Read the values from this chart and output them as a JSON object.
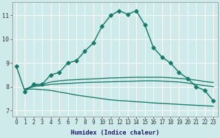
{
  "xlabel": "Humidex (Indice chaleur)",
  "bg_color": "#ceeaea",
  "grid_color": "#ffffff",
  "line_color": "#1a7a6a",
  "x_min": -0.5,
  "x_max": 23.5,
  "y_min": 6.75,
  "y_max": 11.55,
  "series": [
    {
      "x": [
        0,
        1,
        2,
        3,
        4,
        5,
        6,
        7,
        8,
        9,
        10,
        11,
        12,
        13,
        14,
        15,
        16,
        17,
        18,
        19,
        20,
        21,
        22,
        23
      ],
      "y": [
        8.85,
        7.8,
        8.1,
        8.1,
        8.5,
        8.6,
        9.0,
        9.1,
        9.5,
        9.85,
        10.55,
        11.0,
        11.2,
        11.05,
        11.2,
        10.6,
        9.65,
        9.25,
        9.0,
        8.6,
        8.35,
        8.0,
        7.85,
        7.4
      ],
      "marker": "D",
      "markersize": 2.8,
      "linewidth": 1.1
    },
    {
      "x": [
        1,
        2,
        3,
        4,
        5,
        6,
        7,
        8,
        9,
        10,
        11,
        12,
        13,
        14,
        15,
        16,
        17,
        18,
        19,
        20,
        21,
        22,
        23
      ],
      "y": [
        7.9,
        8.05,
        8.1,
        8.2,
        8.25,
        8.28,
        8.3,
        8.32,
        8.33,
        8.35,
        8.37,
        8.38,
        8.39,
        8.4,
        8.4,
        8.4,
        8.4,
        8.38,
        8.35,
        8.32,
        8.28,
        8.22,
        8.18
      ],
      "marker": null,
      "markersize": 0,
      "linewidth": 1.0
    },
    {
      "x": [
        1,
        2,
        3,
        4,
        5,
        6,
        7,
        8,
        9,
        10,
        11,
        12,
        13,
        14,
        15,
        16,
        17,
        18,
        19,
        20,
        21,
        22,
        23
      ],
      "y": [
        7.9,
        8.0,
        8.05,
        8.1,
        8.12,
        8.14,
        8.16,
        8.18,
        8.19,
        8.2,
        8.21,
        8.22,
        8.23,
        8.24,
        8.25,
        8.25,
        8.24,
        8.22,
        8.2,
        8.16,
        8.1,
        8.05,
        8.0
      ],
      "marker": null,
      "markersize": 0,
      "linewidth": 1.0
    },
    {
      "x": [
        1,
        2,
        3,
        4,
        5,
        6,
        7,
        8,
        9,
        10,
        11,
        12,
        13,
        14,
        15,
        16,
        17,
        18,
        19,
        20,
        21,
        22,
        23
      ],
      "y": [
        7.9,
        7.9,
        7.88,
        7.85,
        7.78,
        7.72,
        7.65,
        7.6,
        7.55,
        7.5,
        7.45,
        7.42,
        7.4,
        7.37,
        7.35,
        7.32,
        7.3,
        7.28,
        7.26,
        7.24,
        7.22,
        7.2,
        7.18
      ],
      "marker": null,
      "markersize": 0,
      "linewidth": 1.0
    }
  ],
  "yticks": [
    7,
    8,
    9,
    10,
    11
  ],
  "xticks": [
    0,
    1,
    2,
    3,
    4,
    5,
    6,
    7,
    8,
    9,
    10,
    11,
    12,
    13,
    14,
    15,
    16,
    17,
    18,
    19,
    20,
    21,
    22,
    23
  ],
  "tick_fontsize": 5.5,
  "xlabel_fontsize": 6.5,
  "ytick_fontsize": 6.0
}
